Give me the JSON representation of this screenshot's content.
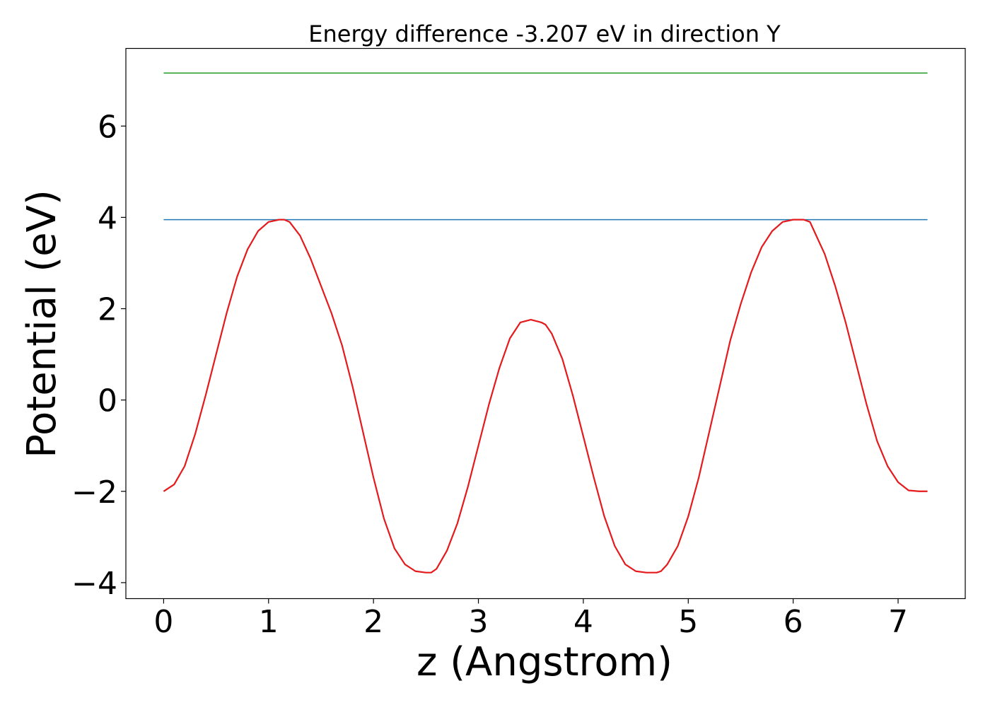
{
  "chart_data": {
    "type": "line",
    "title": "Energy difference -3.207 eV in direction Y",
    "xlabel": "z (Angstrom)",
    "ylabel": "Potential (eV)",
    "xlim": [
      -0.36,
      7.64
    ],
    "ylim": [
      -4.35,
      7.7
    ],
    "xticks": [
      0,
      1,
      2,
      3,
      4,
      5,
      6,
      7
    ],
    "yticks": [
      -4,
      -2,
      0,
      2,
      4,
      6
    ],
    "xtick_labels": [
      "0",
      "1",
      "2",
      "3",
      "4",
      "5",
      "6",
      "7"
    ],
    "ytick_labels": [
      "−4",
      "−2",
      "0",
      "2",
      "4",
      "6"
    ],
    "grid": false,
    "series": [
      {
        "color": "#2ca02c",
        "x": [
          0,
          7.28
        ],
        "y": [
          7.16,
          7.16
        ]
      },
      {
        "color": "#1f77b4",
        "x": [
          0,
          7.28
        ],
        "y": [
          3.95,
          3.95
        ]
      },
      {
        "color": "#e41a1c",
        "x": [
          0,
          0.1,
          0.2,
          0.3,
          0.4,
          0.5,
          0.6,
          0.7,
          0.8,
          0.9,
          1.0,
          1.1,
          1.15,
          1.2,
          1.3,
          1.4,
          1.5,
          1.6,
          1.7,
          1.8,
          1.9,
          2.0,
          2.1,
          2.2,
          2.3,
          2.4,
          2.5,
          2.55,
          2.6,
          2.7,
          2.8,
          2.9,
          3.0,
          3.1,
          3.2,
          3.3,
          3.4,
          3.5,
          3.6,
          3.64,
          3.7,
          3.8,
          3.9,
          4.0,
          4.1,
          4.2,
          4.3,
          4.4,
          4.5,
          4.6,
          4.7,
          4.74,
          4.8,
          4.9,
          5.0,
          5.1,
          5.2,
          5.3,
          5.4,
          5.5,
          5.6,
          5.7,
          5.8,
          5.9,
          6.0,
          6.1,
          6.16,
          6.2,
          6.3,
          6.4,
          6.5,
          6.6,
          6.7,
          6.8,
          6.9,
          7.0,
          7.1,
          7.2,
          7.28
        ],
        "y": [
          -2.0,
          -1.85,
          -1.45,
          -0.75,
          0.1,
          1.0,
          1.9,
          2.7,
          3.3,
          3.7,
          3.9,
          3.95,
          3.95,
          3.9,
          3.6,
          3.1,
          2.5,
          1.9,
          1.2,
          0.3,
          -0.7,
          -1.7,
          -2.6,
          -3.25,
          -3.6,
          -3.75,
          -3.78,
          -3.78,
          -3.7,
          -3.3,
          -2.7,
          -1.9,
          -1.0,
          -0.1,
          0.7,
          1.35,
          1.7,
          1.76,
          1.7,
          1.65,
          1.45,
          0.9,
          0.1,
          -0.8,
          -1.7,
          -2.55,
          -3.2,
          -3.6,
          -3.75,
          -3.78,
          -3.78,
          -3.75,
          -3.6,
          -3.2,
          -2.55,
          -1.7,
          -0.7,
          0.3,
          1.3,
          2.1,
          2.8,
          3.35,
          3.7,
          3.9,
          3.95,
          3.95,
          3.9,
          3.7,
          3.2,
          2.5,
          1.7,
          0.8,
          -0.1,
          -0.9,
          -1.45,
          -1.8,
          -1.98,
          -2.0,
          -2.0
        ]
      }
    ]
  }
}
